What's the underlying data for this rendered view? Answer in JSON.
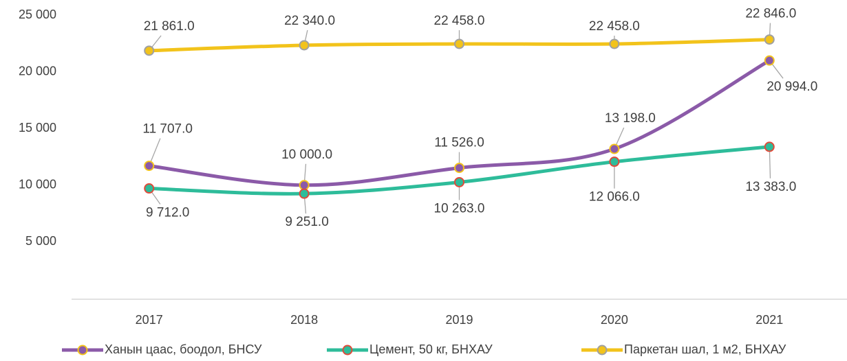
{
  "chart_data": {
    "type": "line",
    "categories": [
      "2017",
      "2018",
      "2019",
      "2020",
      "2021"
    ],
    "series": [
      {
        "name": "Ханын цаас, боодол, БНСУ",
        "color": "#8b5aa8",
        "marker_fill": "#8b5aa8",
        "marker_edge": "#f2c31b",
        "values": [
          11707,
          10000,
          11526,
          13198,
          20994
        ],
        "value_labels": [
          "11 707.0",
          "10 000.0",
          "11 526.0",
          "13 198.0",
          "20 994.0"
        ]
      },
      {
        "name": "Цемент, 50 кг, БНХАУ",
        "color": "#2ebc9a",
        "marker_fill": "#2ebc9a",
        "marker_edge": "#e04a3a",
        "values": [
          9712,
          9251,
          10263,
          12066,
          13383
        ],
        "value_labels": [
          "9 712.0",
          "9 251.0",
          "10 263.0",
          "12 066.0",
          "13 383.0"
        ]
      },
      {
        "name": "Паркетан шал, 1 м2, БНХАУ",
        "color": "#f2c31b",
        "marker_fill": "#f2c31b",
        "marker_edge": "#a0a0a0",
        "values": [
          21861,
          22340,
          22458,
          22458,
          22846
        ],
        "value_labels": [
          "21 861.0",
          "22 340.0",
          "22 458.0",
          "22 458.0",
          "22 846.0"
        ]
      }
    ],
    "ylim": [
      0,
      25000
    ],
    "yticks": [
      {
        "value": 5000,
        "label": "5 000"
      },
      {
        "value": 10000,
        "label": "10 000"
      },
      {
        "value": 15000,
        "label": "15 000"
      },
      {
        "value": 20000,
        "label": "20 000"
      },
      {
        "value": 25000,
        "label": "25 000"
      }
    ],
    "grid": false,
    "legend": "bottom"
  }
}
